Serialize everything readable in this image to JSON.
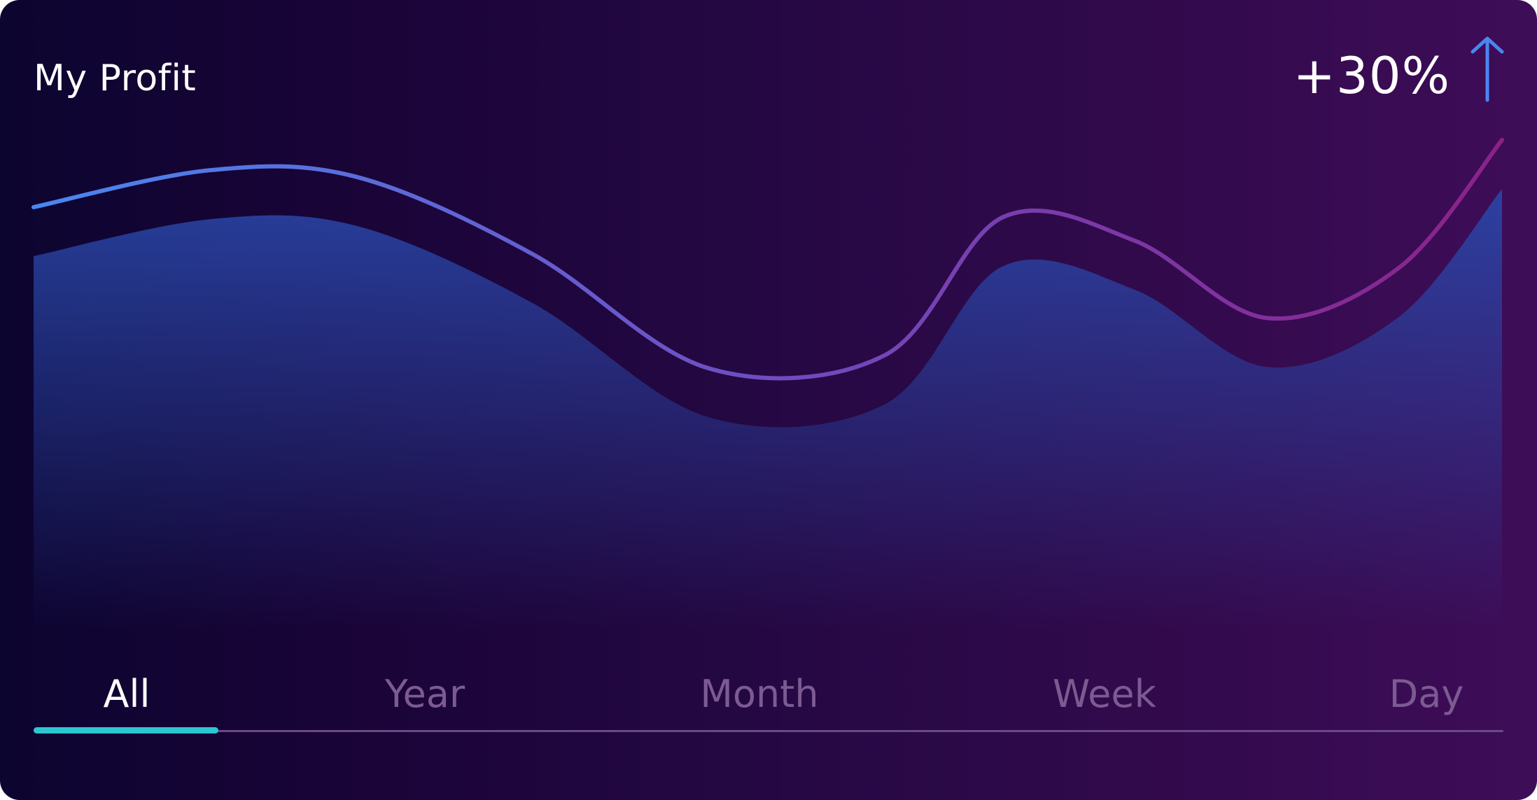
{
  "header": {
    "title": "My Profit",
    "change": "+30%",
    "trend_icon": "arrow-up-icon"
  },
  "tabs": [
    {
      "label": "All",
      "active": true
    },
    {
      "label": "Year",
      "active": false
    },
    {
      "label": "Month",
      "active": false
    },
    {
      "label": "Week",
      "active": false
    },
    {
      "label": "Day",
      "active": false
    }
  ],
  "colors": {
    "background_left": "#0c0530",
    "background_right": "#3e0d58",
    "line_start": "#4a86f0",
    "line_mid": "#6f4cc0",
    "line_end": "#8a2288",
    "area_top": "#2a46a8",
    "tab_indicator": "#2ec6d3",
    "tab_inactive": "#7c5a92",
    "arrow": "#4a86f0"
  },
  "chart_data": {
    "type": "area",
    "grid": false,
    "series": [
      {
        "x": [
          0,
          0.12,
          0.22,
          0.34,
          0.46,
          0.58,
          0.66,
          0.75,
          0.84,
          0.93,
          1.0
        ],
        "y": [
          0.8,
          0.91,
          0.89,
          0.66,
          0.32,
          0.36,
          0.77,
          0.7,
          0.47,
          0.62,
          1.0
        ]
      }
    ]
  }
}
